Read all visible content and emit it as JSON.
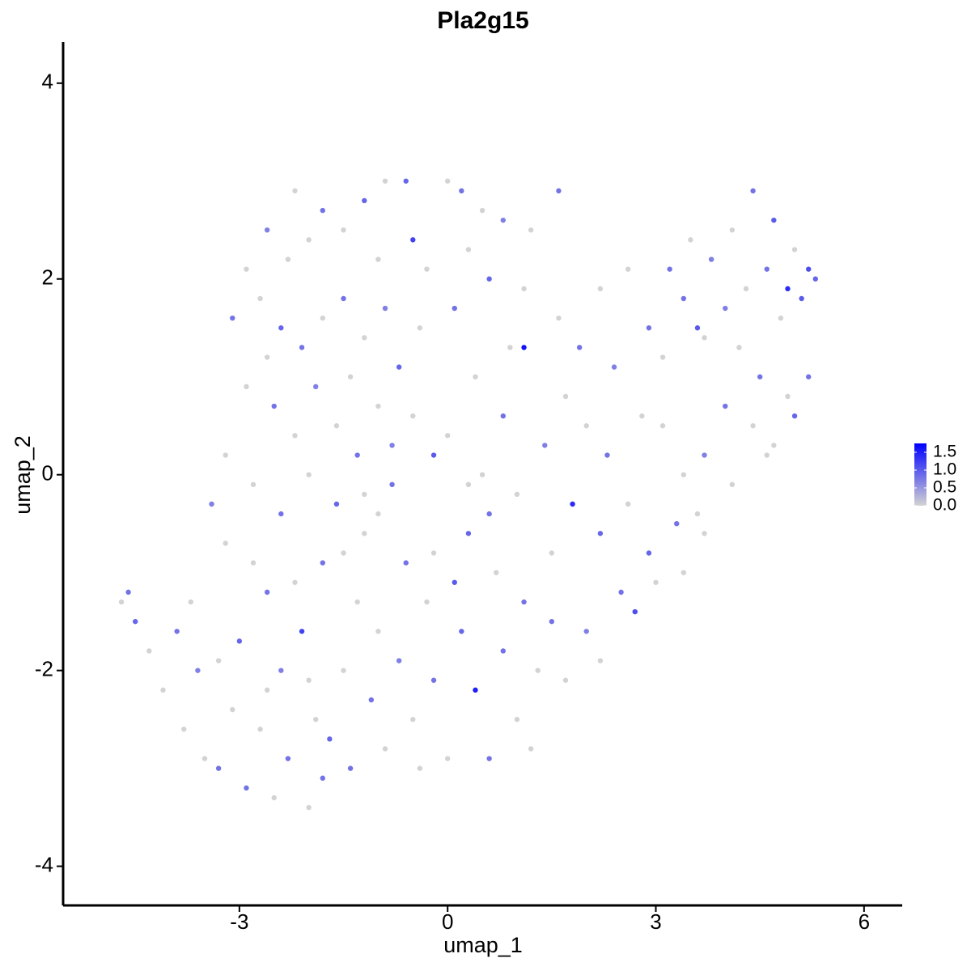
{
  "chart_data": {
    "type": "scatter",
    "title": "Pla2g15",
    "x_label": "umap_1",
    "y_label": "umap_2",
    "xlim": [
      -5.54,
      6.55
    ],
    "ylim": [
      -4.4,
      4.42
    ],
    "xticks": [
      -3,
      0,
      3,
      6
    ],
    "yticks": [
      -4,
      -2,
      0,
      2,
      4
    ],
    "low_color": "#d3d3d3",
    "high_color": "#0000ff",
    "clim": [
      0,
      1.75
    ],
    "colorbar_ticks": [
      {
        "value": 0,
        "label": "0.0"
      },
      {
        "value": 0.5,
        "label": "0.5"
      },
      {
        "value": 1,
        "label": "1.0"
      },
      {
        "value": 1.5,
        "label": "1.5"
      }
    ],
    "points": [
      {
        "x": -2.2,
        "y": 2.9,
        "value": 0
      },
      {
        "x": -1.8,
        "y": 2.7,
        "value": 0.8
      },
      {
        "x": -1.5,
        "y": 2.5,
        "value": 0
      },
      {
        "x": -1.2,
        "y": 2.8,
        "value": 0.9
      },
      {
        "x": -0.9,
        "y": 3.0,
        "value": 0
      },
      {
        "x": -0.6,
        "y": 3.0,
        "value": 0.9
      },
      {
        "x": -0.5,
        "y": 2.4,
        "value": 1.2
      },
      {
        "x": -2.6,
        "y": 2.5,
        "value": 0.7
      },
      {
        "x": -2.9,
        "y": 2.1,
        "value": 0
      },
      {
        "x": -3.1,
        "y": 1.6,
        "value": 0.8
      },
      {
        "x": -2.7,
        "y": 1.8,
        "value": 0
      },
      {
        "x": -2.4,
        "y": 1.5,
        "value": 0.9
      },
      {
        "x": -2.1,
        "y": 1.3,
        "value": 0.8
      },
      {
        "x": -1.8,
        "y": 1.6,
        "value": 0
      },
      {
        "x": -1.5,
        "y": 1.8,
        "value": 0.8
      },
      {
        "x": -1.2,
        "y": 1.4,
        "value": 0
      },
      {
        "x": -0.9,
        "y": 1.7,
        "value": 0.7
      },
      {
        "x": -0.7,
        "y": 1.1,
        "value": 0.9
      },
      {
        "x": -2.9,
        "y": 0.9,
        "value": 0
      },
      {
        "x": -2.5,
        "y": 0.7,
        "value": 0.8
      },
      {
        "x": -2.2,
        "y": 0.4,
        "value": 0
      },
      {
        "x": -1.9,
        "y": 0.9,
        "value": 0.7
      },
      {
        "x": -1.6,
        "y": 0.5,
        "value": 0
      },
      {
        "x": -1.3,
        "y": 0.2,
        "value": 0.8
      },
      {
        "x": -1.0,
        "y": 0.7,
        "value": 0
      },
      {
        "x": -0.8,
        "y": 0.3,
        "value": 0.7
      },
      {
        "x": -3.2,
        "y": 0.2,
        "value": 0
      },
      {
        "x": -3.4,
        "y": -0.3,
        "value": 0.7
      },
      {
        "x": -2.8,
        "y": -0.1,
        "value": 0
      },
      {
        "x": -2.4,
        "y": -0.4,
        "value": 0.8
      },
      {
        "x": -2.0,
        "y": 0.0,
        "value": 0
      },
      {
        "x": -1.6,
        "y": -0.3,
        "value": 0.9
      },
      {
        "x": -1.2,
        "y": -0.6,
        "value": 0
      },
      {
        "x": -0.8,
        "y": -0.1,
        "value": 0.8
      },
      {
        "x": -0.5,
        "y": 0.6,
        "value": 0
      },
      {
        "x": -2.3,
        "y": 2.2,
        "value": 0
      },
      {
        "x": -2.0,
        "y": 2.4,
        "value": 0
      },
      {
        "x": -1.0,
        "y": 2.2,
        "value": 0
      },
      {
        "x": -0.3,
        "y": 2.1,
        "value": 0
      },
      {
        "x": -2.6,
        "y": 1.2,
        "value": 0
      },
      {
        "x": -1.4,
        "y": 1.0,
        "value": 0
      },
      {
        "x": -0.4,
        "y": 1.5,
        "value": 0
      },
      {
        "x": 0.0,
        "y": 3.0,
        "value": 0
      },
      {
        "x": 0.2,
        "y": 2.9,
        "value": 0.8
      },
      {
        "x": 0.5,
        "y": 2.7,
        "value": 0
      },
      {
        "x": 0.8,
        "y": 2.6,
        "value": 0.7
      },
      {
        "x": 1.2,
        "y": 2.5,
        "value": 0
      },
      {
        "x": 1.6,
        "y": 2.9,
        "value": 0.8
      },
      {
        "x": 0.3,
        "y": 2.3,
        "value": 0
      },
      {
        "x": 0.6,
        "y": 2.0,
        "value": 0.9
      },
      {
        "x": 1.1,
        "y": 1.9,
        "value": 0
      },
      {
        "x": 0.1,
        "y": 1.7,
        "value": 0.8
      },
      {
        "x": 0.9,
        "y": 1.3,
        "value": 0
      },
      {
        "x": 1.1,
        "y": 1.3,
        "value": 1.6
      },
      {
        "x": 0.4,
        "y": 1.0,
        "value": 0
      },
      {
        "x": 0.8,
        "y": 0.6,
        "value": 0.8
      },
      {
        "x": 0.0,
        "y": 0.4,
        "value": 0
      },
      {
        "x": -0.2,
        "y": 0.2,
        "value": 1.0
      },
      {
        "x": 0.3,
        "y": -0.1,
        "value": 0
      },
      {
        "x": 0.6,
        "y": -0.4,
        "value": 0.8
      },
      {
        "x": 1.0,
        "y": -0.2,
        "value": 0
      },
      {
        "x": 1.4,
        "y": 0.3,
        "value": 0.7
      },
      {
        "x": 1.7,
        "y": 0.8,
        "value": 0
      },
      {
        "x": 1.9,
        "y": 1.3,
        "value": 0.8
      },
      {
        "x": 2.2,
        "y": 1.9,
        "value": 0
      },
      {
        "x": 1.6,
        "y": 1.6,
        "value": 0
      },
      {
        "x": 2.4,
        "y": 1.1,
        "value": 0.7
      },
      {
        "x": 2.0,
        "y": 0.5,
        "value": 0
      },
      {
        "x": 2.3,
        "y": 0.2,
        "value": 0.8
      },
      {
        "x": 1.8,
        "y": -0.3,
        "value": 1.4
      },
      {
        "x": 1.5,
        "y": -0.8,
        "value": 0
      },
      {
        "x": 2.2,
        "y": -0.6,
        "value": 0.9
      },
      {
        "x": 2.6,
        "y": -0.3,
        "value": 0
      },
      {
        "x": 2.8,
        "y": 0.6,
        "value": 0
      },
      {
        "x": 2.9,
        "y": 1.5,
        "value": 0.8
      },
      {
        "x": 2.6,
        "y": 2.1,
        "value": 0
      },
      {
        "x": 3.2,
        "y": 2.1,
        "value": 0.8
      },
      {
        "x": 3.5,
        "y": 2.4,
        "value": 0
      },
      {
        "x": 3.8,
        "y": 2.2,
        "value": 0.7
      },
      {
        "x": 4.1,
        "y": 2.5,
        "value": 0
      },
      {
        "x": 4.4,
        "y": 2.9,
        "value": 0.8
      },
      {
        "x": 4.7,
        "y": 2.6,
        "value": 1.0
      },
      {
        "x": 5.0,
        "y": 2.3,
        "value": 0
      },
      {
        "x": 5.2,
        "y": 2.1,
        "value": 1.1
      },
      {
        "x": 4.9,
        "y": 1.9,
        "value": 1.4
      },
      {
        "x": 5.1,
        "y": 1.8,
        "value": 1.0
      },
      {
        "x": 5.3,
        "y": 2.0,
        "value": 0.9
      },
      {
        "x": 4.6,
        "y": 2.1,
        "value": 0.8
      },
      {
        "x": 4.8,
        "y": 1.6,
        "value": 0
      },
      {
        "x": 4.3,
        "y": 1.9,
        "value": 0
      },
      {
        "x": 4.0,
        "y": 1.7,
        "value": 0.7
      },
      {
        "x": 3.7,
        "y": 1.4,
        "value": 0
      },
      {
        "x": 3.4,
        "y": 1.8,
        "value": 0.8
      },
      {
        "x": 3.1,
        "y": 1.2,
        "value": 0
      },
      {
        "x": 3.6,
        "y": 1.5,
        "value": 1.0
      },
      {
        "x": 4.2,
        "y": 1.3,
        "value": 0
      },
      {
        "x": 4.5,
        "y": 1.0,
        "value": 0.8
      },
      {
        "x": 4.9,
        "y": 0.8,
        "value": 0
      },
      {
        "x": 5.2,
        "y": 1.0,
        "value": 0.8
      },
      {
        "x": 5.0,
        "y": 0.6,
        "value": 0.9
      },
      {
        "x": 4.7,
        "y": 0.3,
        "value": 0
      },
      {
        "x": 4.4,
        "y": 0.5,
        "value": 0
      },
      {
        "x": 4.0,
        "y": 0.7,
        "value": 0.8
      },
      {
        "x": 3.7,
        "y": 0.2,
        "value": 0.7
      },
      {
        "x": 3.4,
        "y": 0.0,
        "value": 0
      },
      {
        "x": 3.1,
        "y": 0.5,
        "value": 0
      },
      {
        "x": 3.3,
        "y": -0.5,
        "value": 0.8
      },
      {
        "x": 2.9,
        "y": -0.8,
        "value": 0.9
      },
      {
        "x": 3.6,
        "y": -0.4,
        "value": 0
      },
      {
        "x": 4.1,
        "y": -0.1,
        "value": 0
      },
      {
        "x": 4.6,
        "y": 0.2,
        "value": 0
      },
      {
        "x": 2.7,
        "y": -1.4,
        "value": 1.1
      },
      {
        "x": 2.5,
        "y": -1.2,
        "value": 0.8
      },
      {
        "x": 3.0,
        "y": -1.1,
        "value": 0
      },
      {
        "x": 3.4,
        "y": -1.0,
        "value": 0
      },
      {
        "x": 3.7,
        "y": -0.6,
        "value": 0
      },
      {
        "x": -4.7,
        "y": -1.3,
        "value": 0
      },
      {
        "x": -4.6,
        "y": -1.2,
        "value": 0.8
      },
      {
        "x": -4.5,
        "y": -1.5,
        "value": 0.9
      },
      {
        "x": -4.3,
        "y": -1.8,
        "value": 0
      },
      {
        "x": -4.1,
        "y": -2.2,
        "value": 0
      },
      {
        "x": -3.9,
        "y": -1.6,
        "value": 0.8
      },
      {
        "x": -3.8,
        "y": -2.6,
        "value": 0
      },
      {
        "x": -3.6,
        "y": -2.0,
        "value": 0.7
      },
      {
        "x": -3.5,
        "y": -2.9,
        "value": 0
      },
      {
        "x": -3.3,
        "y": -3.0,
        "value": 0.8
      },
      {
        "x": -3.1,
        "y": -2.4,
        "value": 0
      },
      {
        "x": -3.0,
        "y": -1.7,
        "value": 0.9
      },
      {
        "x": -2.9,
        "y": -3.2,
        "value": 0.8
      },
      {
        "x": -2.7,
        "y": -2.6,
        "value": 0
      },
      {
        "x": -2.6,
        "y": -1.2,
        "value": 0.8
      },
      {
        "x": -2.5,
        "y": -3.3,
        "value": 0
      },
      {
        "x": -2.4,
        "y": -2.0,
        "value": 0.7
      },
      {
        "x": -2.3,
        "y": -2.9,
        "value": 0.8
      },
      {
        "x": -2.1,
        "y": -1.6,
        "value": 1.2
      },
      {
        "x": -2.0,
        "y": -3.4,
        "value": 0
      },
      {
        "x": -1.9,
        "y": -2.5,
        "value": 0
      },
      {
        "x": -1.8,
        "y": -0.9,
        "value": 0.8
      },
      {
        "x": -1.7,
        "y": -2.7,
        "value": 0.9
      },
      {
        "x": -1.5,
        "y": -2.0,
        "value": 0
      },
      {
        "x": -1.4,
        "y": -3.0,
        "value": 0.8
      },
      {
        "x": -1.3,
        "y": -1.3,
        "value": 0
      },
      {
        "x": -1.1,
        "y": -2.3,
        "value": 0.8
      },
      {
        "x": -1.0,
        "y": -1.6,
        "value": 0
      },
      {
        "x": -0.9,
        "y": -2.8,
        "value": 0
      },
      {
        "x": -0.7,
        "y": -1.9,
        "value": 0.7
      },
      {
        "x": -0.6,
        "y": -0.9,
        "value": 0.8
      },
      {
        "x": -0.5,
        "y": -2.5,
        "value": 0
      },
      {
        "x": -0.3,
        "y": -1.3,
        "value": 0
      },
      {
        "x": -0.2,
        "y": -2.1,
        "value": 0.8
      },
      {
        "x": 0.0,
        "y": -2.9,
        "value": 0
      },
      {
        "x": 0.2,
        "y": -1.6,
        "value": 0.9
      },
      {
        "x": 0.3,
        "y": -0.6,
        "value": 0.9
      },
      {
        "x": 0.4,
        "y": -2.2,
        "value": 1.5
      },
      {
        "x": 0.6,
        "y": -2.9,
        "value": 0.8
      },
      {
        "x": 0.7,
        "y": -1.0,
        "value": 0
      },
      {
        "x": 0.8,
        "y": -1.8,
        "value": 0.8
      },
      {
        "x": 1.0,
        "y": -2.5,
        "value": 0
      },
      {
        "x": 1.1,
        "y": -1.3,
        "value": 0.8
      },
      {
        "x": 1.3,
        "y": -2.0,
        "value": 0
      },
      {
        "x": 1.5,
        "y": -1.5,
        "value": 0.8
      },
      {
        "x": 1.7,
        "y": -2.1,
        "value": 0
      },
      {
        "x": 2.0,
        "y": -1.6,
        "value": 0.7
      },
      {
        "x": 2.2,
        "y": -1.9,
        "value": 0
      },
      {
        "x": -3.2,
        "y": -0.7,
        "value": 0
      },
      {
        "x": -2.8,
        "y": -0.9,
        "value": 0
      },
      {
        "x": -2.2,
        "y": -1.1,
        "value": 0
      },
      {
        "x": -1.5,
        "y": -0.8,
        "value": 0
      },
      {
        "x": -1.0,
        "y": -0.4,
        "value": 0
      },
      {
        "x": -0.2,
        "y": -0.8,
        "value": 0
      },
      {
        "x": 0.5,
        "y": 0.0,
        "value": 0
      },
      {
        "x": -3.7,
        "y": -1.3,
        "value": 0
      },
      {
        "x": -3.3,
        "y": -1.9,
        "value": 0
      },
      {
        "x": -2.0,
        "y": -2.1,
        "value": 0
      },
      {
        "x": -0.4,
        "y": -3.0,
        "value": 0
      },
      {
        "x": 1.2,
        "y": -2.8,
        "value": 0
      },
      {
        "x": 0.1,
        "y": -1.1,
        "value": 1.0
      },
      {
        "x": -1.8,
        "y": -3.1,
        "value": 0.8
      },
      {
        "x": -2.6,
        "y": -2.2,
        "value": 0
      },
      {
        "x": -1.2,
        "y": -0.2,
        "value": 0
      }
    ]
  }
}
